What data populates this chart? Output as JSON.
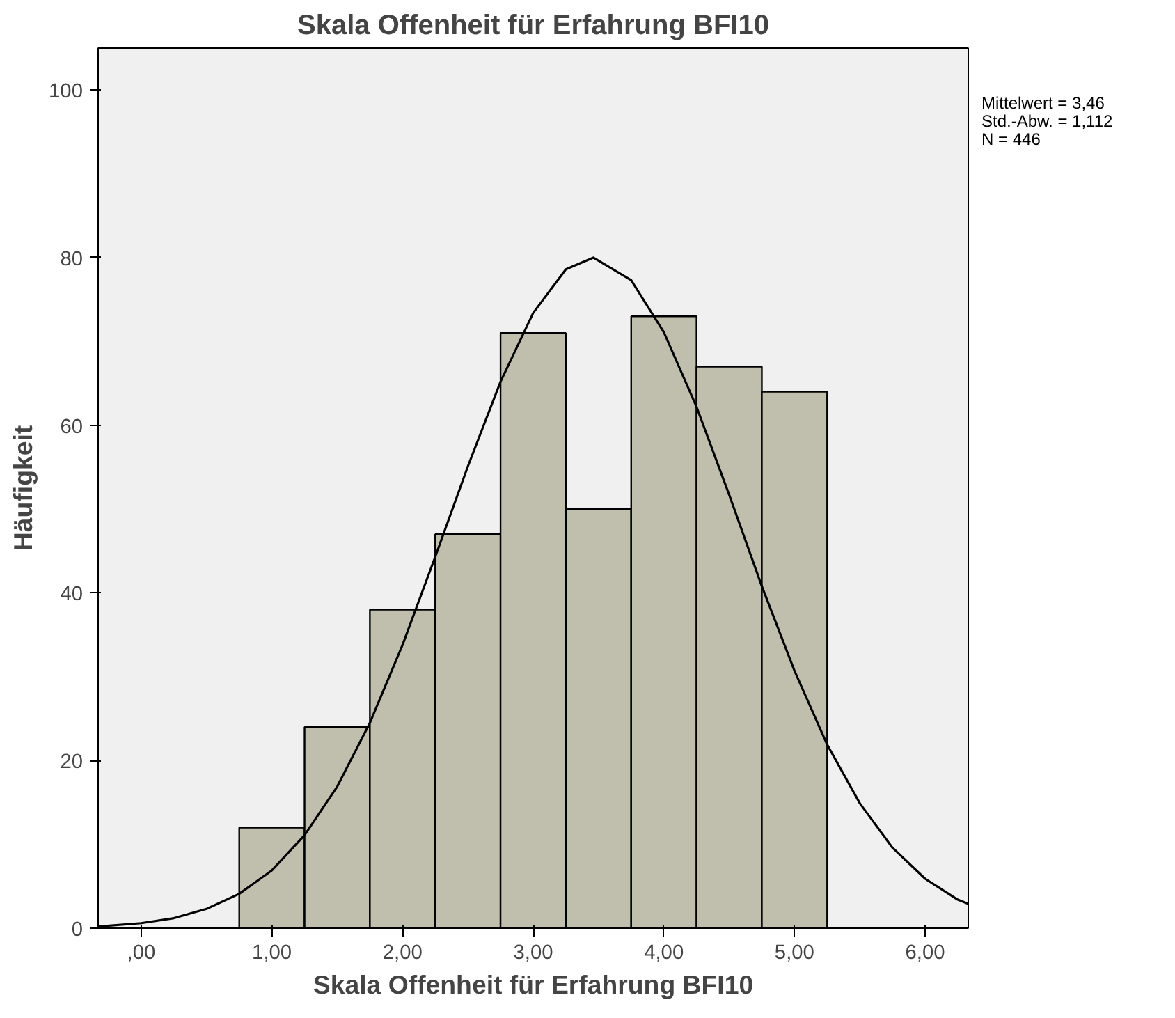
{
  "chart_data": {
    "type": "histogram",
    "title": "Skala Offenheit für Erfahrung BFI10",
    "xlabel": "Skala Offenheit für Erfahrung BFI10",
    "ylabel": "Häufigkeit",
    "bins": [
      0.75,
      1.25,
      1.75,
      2.25,
      2.75,
      3.25,
      3.75,
      4.25,
      4.75,
      5.25
    ],
    "values": [
      12,
      24,
      38,
      47,
      71,
      50,
      73,
      67,
      64
    ],
    "color": "#c0bfad",
    "series": [
      {
        "type": "line",
        "color": "#000000",
        "x": [
          -0.33,
          0,
          0.25,
          0.5,
          0.75,
          1.0,
          1.25,
          1.5,
          1.75,
          2.0,
          2.25,
          2.5,
          2.75,
          3.0,
          3.25,
          3.46,
          3.75,
          4.0,
          4.25,
          4.5,
          4.75,
          5.0,
          5.25,
          5.5,
          5.75,
          6.0,
          6.25,
          6.33
        ],
        "values": [
          0.2,
          0.6,
          1.2,
          2.3,
          4.1,
          6.9,
          11.1,
          16.9,
          24.5,
          33.8,
          44.3,
          55.1,
          65.2,
          73.4,
          78.6,
          80.0,
          77.3,
          71.1,
          62.2,
          51.7,
          40.8,
          30.7,
          21.9,
          14.9,
          9.6,
          5.9,
          3.4,
          2.9
        ]
      }
    ],
    "annotations": [
      "Mittelwert = 3,46\nStd.-Abw. = 1,112\nN = 446"
    ],
    "xlim": [
      -0.33,
      6.33
    ],
    "ylim": [
      0,
      105
    ],
    "xticks": [
      {
        "value": 0,
        "label": ",00"
      },
      {
        "value": 1,
        "label": "1,00"
      },
      {
        "value": 2,
        "label": "2,00"
      },
      {
        "value": 3,
        "label": "3,00"
      },
      {
        "value": 4,
        "label": "4,00"
      },
      {
        "value": 5,
        "label": "5,00"
      },
      {
        "value": 6,
        "label": "6,00"
      }
    ],
    "yticks": [
      0,
      20,
      40,
      60,
      80,
      100
    ],
    "grid": false
  }
}
